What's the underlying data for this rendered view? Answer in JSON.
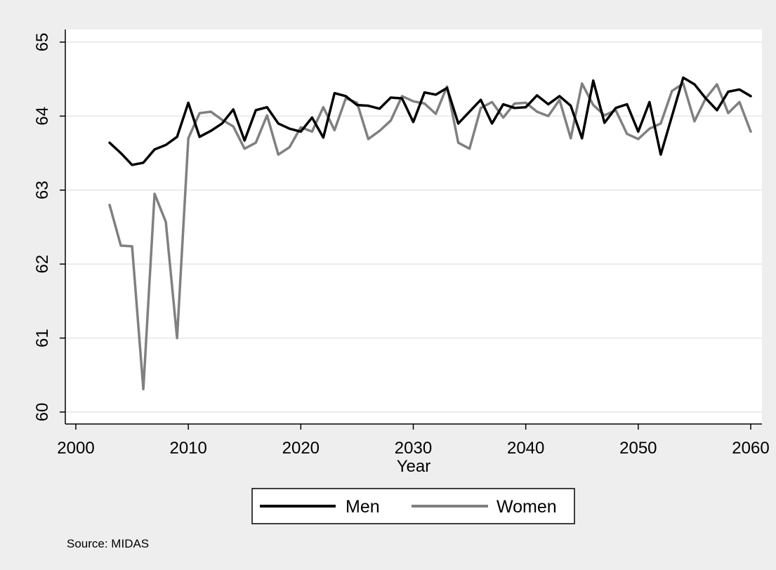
{
  "chart_data": {
    "type": "line",
    "title": "",
    "xlabel": "Year",
    "ylabel": "",
    "xlim": [
      2000,
      2060
    ],
    "ylim": [
      60,
      65
    ],
    "x_ticks": [
      2000,
      2010,
      2020,
      2030,
      2040,
      2050,
      2060
    ],
    "y_ticks": [
      60,
      61,
      62,
      63,
      64,
      65
    ],
    "grid": "horizontal",
    "legend_position": "bottom",
    "note": "Source: MIDAS",
    "x": [
      2003,
      2004,
      2005,
      2006,
      2007,
      2008,
      2009,
      2010,
      2011,
      2012,
      2013,
      2014,
      2015,
      2016,
      2017,
      2018,
      2019,
      2020,
      2021,
      2022,
      2023,
      2024,
      2025,
      2026,
      2027,
      2028,
      2029,
      2030,
      2031,
      2032,
      2033,
      2034,
      2035,
      2036,
      2037,
      2038,
      2039,
      2040,
      2041,
      2042,
      2043,
      2044,
      2045,
      2046,
      2047,
      2048,
      2049,
      2050,
      2051,
      2052,
      2053,
      2054,
      2055,
      2056,
      2057,
      2058,
      2059,
      2060
    ],
    "series": [
      {
        "name": "Men",
        "color": "#000000",
        "values": [
          63.64,
          63.5,
          63.34,
          63.37,
          63.55,
          63.61,
          63.72,
          64.18,
          63.72,
          63.8,
          63.9,
          64.09,
          63.67,
          64.08,
          64.12,
          63.9,
          63.83,
          63.79,
          63.98,
          63.71,
          64.31,
          64.27,
          64.15,
          64.14,
          64.1,
          64.25,
          64.24,
          63.92,
          64.32,
          64.29,
          64.38,
          63.9,
          64.06,
          64.22,
          63.9,
          64.16,
          64.11,
          64.12,
          64.28,
          64.16,
          64.27,
          64.14,
          63.7,
          64.48,
          63.91,
          64.11,
          64.16,
          63.79,
          64.19,
          63.48,
          64.0,
          64.52,
          64.43,
          64.24,
          64.08,
          64.33,
          64.36,
          64.27
        ]
      },
      {
        "name": "Women",
        "color": "#808080",
        "values": [
          62.8,
          62.25,
          62.24,
          60.31,
          62.95,
          62.57,
          61.0,
          63.7,
          64.04,
          64.06,
          63.95,
          63.86,
          63.56,
          63.64,
          64.01,
          63.48,
          63.58,
          63.85,
          63.79,
          64.12,
          63.81,
          64.24,
          64.18,
          63.69,
          63.8,
          63.94,
          64.27,
          64.2,
          64.17,
          64.03,
          64.4,
          63.64,
          63.56,
          64.11,
          64.19,
          63.98,
          64.17,
          64.18,
          64.06,
          64.0,
          64.22,
          63.7,
          64.44,
          64.15,
          64.01,
          64.08,
          63.76,
          63.69,
          63.83,
          63.9,
          64.34,
          64.44,
          63.93,
          64.24,
          64.43,
          64.04,
          64.19,
          63.79
        ]
      }
    ]
  }
}
